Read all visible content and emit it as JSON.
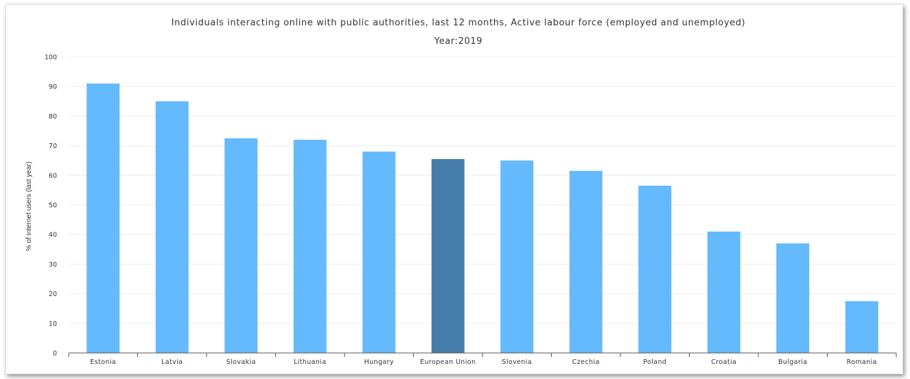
{
  "chart_data": {
    "type": "bar",
    "title": "Individuals interacting online with public authorities, last 12 months, Active labour force (employed and unemployed)",
    "subtitle": "Year:2019",
    "ylabel": "% of internet users (last year)",
    "xlabel": "",
    "ylim": [
      0,
      100
    ],
    "yticks": [
      0,
      10,
      20,
      30,
      40,
      50,
      60,
      70,
      80,
      90,
      100
    ],
    "categories": [
      "Estonia",
      "Latvia",
      "Slovakia",
      "Lithuania",
      "Hungary",
      "European Union",
      "Slovenia",
      "Czechia",
      "Poland",
      "Croatia",
      "Bulgaria",
      "Romania"
    ],
    "values": [
      91,
      85,
      72.5,
      72,
      68,
      65.5,
      65,
      61.5,
      56.5,
      41,
      37,
      17.5
    ],
    "highlight_category": "European Union",
    "grid": true,
    "legend": "none",
    "colors": {
      "bar": "#65b9fd",
      "highlight": "#477dab",
      "grid": "#ececec",
      "axis": "#555555"
    }
  }
}
